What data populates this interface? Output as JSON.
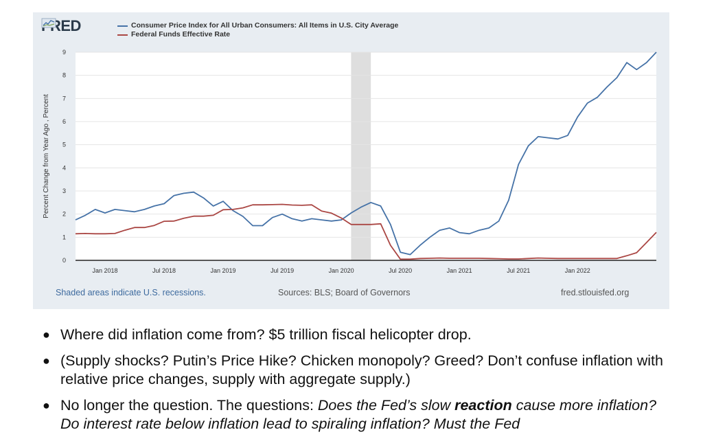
{
  "brand": "FRED",
  "legend": [
    {
      "label": "Consumer Price Index for All Urban Consumers: All Items in U.S. City Average",
      "color": "#4572a7"
    },
    {
      "label": "Federal Funds Effective Rate",
      "color": "#aa4643"
    }
  ],
  "footer": {
    "recession_note": "Shaded areas indicate U.S. recessions.",
    "sources": "Sources: BLS; Board of Governors",
    "site": "fred.stlouisfed.org"
  },
  "chart_data": {
    "type": "line",
    "ylabel": "Percent Change from Year Ago , Percent",
    "ylim": [
      0,
      9
    ],
    "yticks": [
      "0",
      "1",
      "2",
      "3",
      "4",
      "5",
      "6",
      "7",
      "8",
      "9"
    ],
    "xlim": [
      2017.75,
      2022.667
    ],
    "xticks": [
      {
        "label": "Jan 2018",
        "x": 2018.0
      },
      {
        "label": "Jul 2018",
        "x": 2018.5
      },
      {
        "label": "Jan 2019",
        "x": 2019.0
      },
      {
        "label": "Jul 2019",
        "x": 2019.5
      },
      {
        "label": "Jan 2020",
        "x": 2020.0
      },
      {
        "label": "Jul 2020",
        "x": 2020.5
      },
      {
        "label": "Jan 2021",
        "x": 2021.0
      },
      {
        "label": "Jul 2021",
        "x": 2021.5
      },
      {
        "label": "Jan 2022",
        "x": 2022.0
      }
    ],
    "recession": [
      2020.083,
      2020.25
    ],
    "series": [
      {
        "name": "Consumer Price Index for All Urban Consumers: All Items in U.S. City Average",
        "color": "#4572a7",
        "values": [
          1.75,
          1.95,
          2.2,
          2.05,
          2.2,
          2.15,
          2.1,
          2.2,
          2.35,
          2.45,
          2.8,
          2.9,
          2.95,
          2.7,
          2.35,
          2.55,
          2.15,
          1.9,
          1.5,
          1.5,
          1.85,
          2.0,
          1.8,
          1.7,
          1.8,
          1.75,
          1.7,
          1.75,
          2.05,
          2.3,
          2.5,
          2.35,
          1.55,
          0.35,
          0.25,
          0.65,
          1.0,
          1.3,
          1.4,
          1.2,
          1.15,
          1.3,
          1.4,
          1.7,
          2.6,
          4.15,
          4.95,
          5.35,
          5.3,
          5.25,
          5.4,
          6.2,
          6.8,
          7.05,
          7.5,
          7.9,
          8.55,
          8.25,
          8.55,
          9.0
        ]
      },
      {
        "name": "Federal Funds Effective Rate",
        "color": "#aa4643",
        "values": [
          1.15,
          1.16,
          1.15,
          1.15,
          1.16,
          1.3,
          1.42,
          1.42,
          1.51,
          1.69,
          1.7,
          1.82,
          1.91,
          1.91,
          1.95,
          2.19,
          2.2,
          2.27,
          2.4,
          2.4,
          2.41,
          2.42,
          2.39,
          2.38,
          2.4,
          2.13,
          2.04,
          1.83,
          1.55,
          1.55,
          1.55,
          1.58,
          0.65,
          0.05,
          0.05,
          0.08,
          0.09,
          0.1,
          0.09,
          0.09,
          0.09,
          0.09,
          0.08,
          0.07,
          0.06,
          0.06,
          0.08,
          0.1,
          0.09,
          0.08,
          0.08,
          0.08,
          0.08,
          0.08,
          0.08,
          0.08,
          0.2,
          0.33,
          0.77,
          1.21
        ]
      }
    ]
  },
  "bullets": [
    {
      "parts": [
        {
          "text": "Where did inflation come from? $5 trillion fiscal helicopter drop.",
          "style": "normal"
        }
      ]
    },
    {
      "parts": [
        {
          "text": "(Supply shocks? Putin’s Price Hike? Chicken monopoly? Greed? Don’t confuse inflation with relative price changes, supply with aggregate supply.)",
          "style": "normal"
        }
      ]
    },
    {
      "parts": [
        {
          "text": "No longer the question. The questions: ",
          "style": "normal"
        },
        {
          "text": "Does the Fed’s slow ",
          "style": "italic"
        },
        {
          "text": "reaction",
          "style": "bold-italic"
        },
        {
          "text": " cause more inflation? Do interest rate below inflation lead to spiraling inflation? Must the Fed",
          "style": "italic"
        }
      ]
    }
  ]
}
